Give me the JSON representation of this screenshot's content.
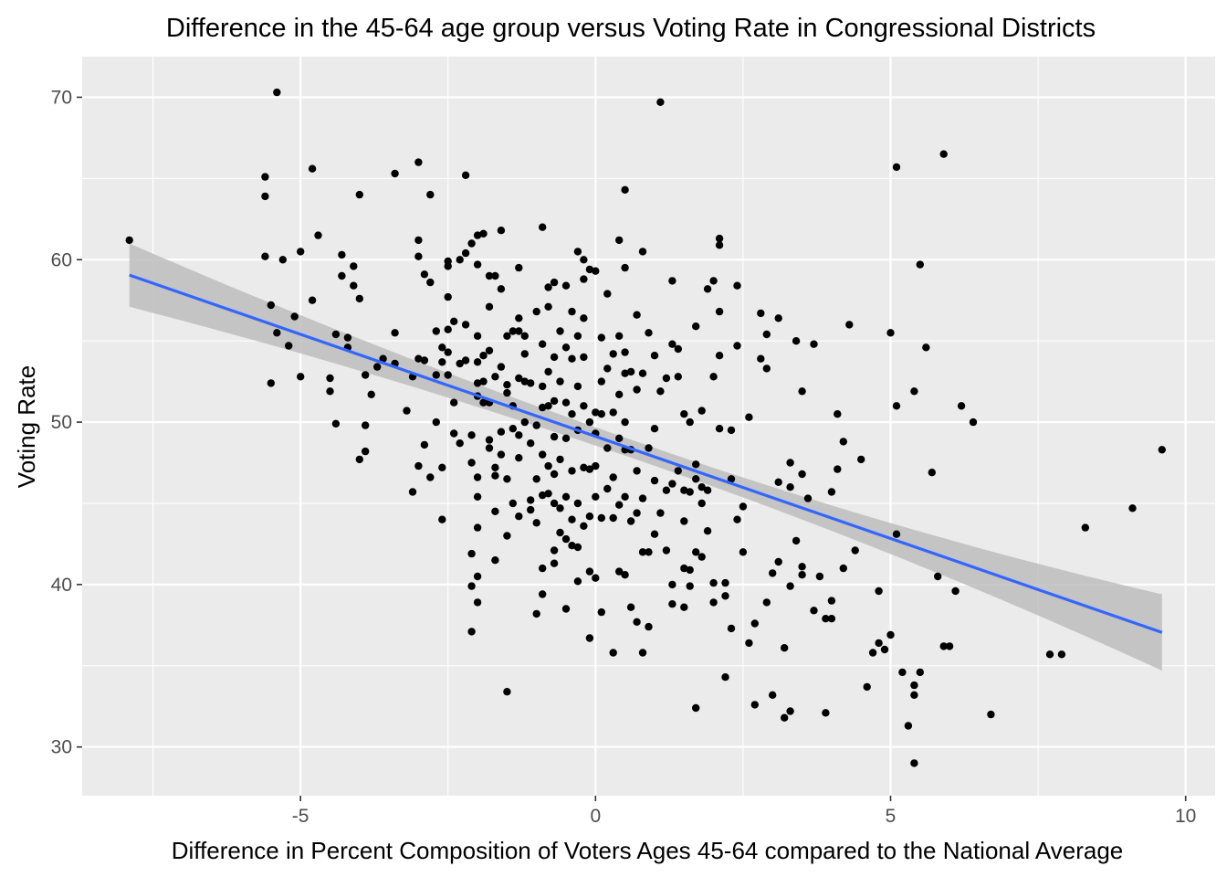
{
  "chart_data": {
    "type": "scatter",
    "title": "Difference in the 45-64 age group versus Voting Rate in Congressional Districts",
    "xlabel": "Difference in Percent Composition of Voters Ages 45-64 compared to the National Average",
    "ylabel": "Voting Rate",
    "xlim": [
      -8.7,
      10.5
    ],
    "ylim": [
      27,
      72.5
    ],
    "x_ticks": [
      -5,
      0,
      5,
      10
    ],
    "x_tick_labels": [
      "-5",
      "0",
      "5",
      "10"
    ],
    "y_ticks": [
      30,
      40,
      50,
      60,
      70
    ],
    "y_tick_labels": [
      "30",
      "40",
      "50",
      "60",
      "70"
    ],
    "grid": true,
    "legend": "none",
    "colors": {
      "panel_background": "#ebebeb",
      "grid_line": "#ffffff",
      "point": "#000000",
      "trend_line": "#3366ff",
      "confidence_band": "#bdbdbd"
    },
    "trend": {
      "method": "linear",
      "x": [
        -7.9,
        9.6
      ],
      "y": [
        59.05,
        37.05
      ],
      "band_upper": [
        61.0,
        39.4
      ],
      "band_lower": [
        57.1,
        34.7
      ]
    },
    "points": [
      [
        -7.9,
        61.2
      ],
      [
        -5.4,
        70.3
      ],
      [
        -5.6,
        65.1
      ],
      [
        -5.6,
        63.9
      ],
      [
        -5.6,
        60.2
      ],
      [
        -5.3,
        60.0
      ],
      [
        -5.5,
        57.2
      ],
      [
        -5.4,
        55.5
      ],
      [
        -5.5,
        52.4
      ],
      [
        -5.2,
        54.7
      ],
      [
        -5.1,
        56.5
      ],
      [
        -5.0,
        60.5
      ],
      [
        -5.0,
        52.8
      ],
      [
        -4.8,
        65.6
      ],
      [
        -4.8,
        57.5
      ],
      [
        -4.7,
        61.5
      ],
      [
        -4.5,
        52.7
      ],
      [
        -4.5,
        51.9
      ],
      [
        -4.4,
        55.4
      ],
      [
        -4.4,
        49.9
      ],
      [
        -4.3,
        60.3
      ],
      [
        -4.3,
        59.0
      ],
      [
        -4.2,
        55.2
      ],
      [
        -4.2,
        54.6
      ],
      [
        -4.1,
        59.6
      ],
      [
        -4.1,
        58.4
      ],
      [
        -4.0,
        64.0
      ],
      [
        -4.0,
        57.6
      ],
      [
        -3.9,
        52.9
      ],
      [
        -3.9,
        49.8
      ],
      [
        -3.9,
        48.2
      ],
      [
        -4.0,
        47.7
      ],
      [
        -3.8,
        51.7
      ],
      [
        -3.7,
        53.4
      ],
      [
        -3.6,
        53.9
      ],
      [
        -3.4,
        65.3
      ],
      [
        -3.4,
        55.5
      ],
      [
        -3.4,
        53.6
      ],
      [
        -3.2,
        50.7
      ],
      [
        -3.1,
        52.8
      ],
      [
        -3.0,
        66.0
      ],
      [
        -3.0,
        61.2
      ],
      [
        -3.0,
        60.2
      ],
      [
        -3.0,
        53.9
      ],
      [
        -2.9,
        59.1
      ],
      [
        -2.9,
        53.8
      ],
      [
        -2.9,
        48.6
      ],
      [
        -3.0,
        47.3
      ],
      [
        -3.1,
        45.7
      ],
      [
        -2.8,
        64.0
      ],
      [
        -2.8,
        58.6
      ],
      [
        -2.7,
        55.6
      ],
      [
        -2.7,
        52.9
      ],
      [
        -2.7,
        50.0
      ],
      [
        -2.8,
        46.6
      ],
      [
        -2.6,
        54.6
      ],
      [
        -2.6,
        53.7
      ],
      [
        -2.6,
        47.2
      ],
      [
        -2.6,
        44.0
      ],
      [
        -2.5,
        59.6
      ],
      [
        -2.5,
        59.9
      ],
      [
        -2.5,
        57.7
      ],
      [
        -2.5,
        55.7
      ],
      [
        -2.5,
        54.3
      ],
      [
        -2.5,
        52.9
      ],
      [
        -2.4,
        56.2
      ],
      [
        -2.4,
        51.2
      ],
      [
        -2.4,
        49.3
      ],
      [
        -2.3,
        60.0
      ],
      [
        -2.3,
        53.6
      ],
      [
        -2.3,
        48.7
      ],
      [
        -2.2,
        65.2
      ],
      [
        -2.2,
        60.4
      ],
      [
        -2.2,
        56.0
      ],
      [
        -2.2,
        53.8
      ],
      [
        -2.1,
        61.0
      ],
      [
        -2.1,
        49.2
      ],
      [
        -2.1,
        47.5
      ],
      [
        -2.0,
        61.5
      ],
      [
        -2.0,
        59.7
      ],
      [
        -2.0,
        55.3
      ],
      [
        -2.0,
        53.7
      ],
      [
        -2.0,
        52.4
      ],
      [
        -2.0,
        51.6
      ],
      [
        -2.0,
        46.6
      ],
      [
        -2.0,
        45.4
      ],
      [
        -2.0,
        43.5
      ],
      [
        -2.1,
        41.9
      ],
      [
        -2.1,
        39.9
      ],
      [
        -2.0,
        38.9
      ],
      [
        -2.0,
        40.5
      ],
      [
        -2.1,
        37.1
      ],
      [
        -1.9,
        61.6
      ],
      [
        -1.9,
        54.1
      ],
      [
        -1.9,
        52.5
      ],
      [
        -1.9,
        51.2
      ],
      [
        -1.8,
        59.0
      ],
      [
        -1.8,
        57.1
      ],
      [
        -1.8,
        54.4
      ],
      [
        -1.8,
        51.2
      ],
      [
        -1.8,
        48.9
      ],
      [
        -1.8,
        48.4
      ],
      [
        -1.7,
        59.0
      ],
      [
        -1.7,
        52.8
      ],
      [
        -1.7,
        47.2
      ],
      [
        -1.7,
        46.7
      ],
      [
        -1.7,
        44.5
      ],
      [
        -1.7,
        41.5
      ],
      [
        -1.6,
        61.8
      ],
      [
        -1.6,
        58.2
      ],
      [
        -1.6,
        53.4
      ],
      [
        -1.6,
        49.4
      ],
      [
        -1.6,
        48.0
      ],
      [
        -1.5,
        55.3
      ],
      [
        -1.5,
        52.3
      ],
      [
        -1.5,
        51.8
      ],
      [
        -1.5,
        46.5
      ],
      [
        -1.5,
        43.0
      ],
      [
        -1.5,
        33.4
      ],
      [
        -1.4,
        55.6
      ],
      [
        -1.4,
        51.0
      ],
      [
        -1.4,
        49.6
      ],
      [
        -1.4,
        45.0
      ],
      [
        -1.3,
        59.5
      ],
      [
        -1.3,
        56.4
      ],
      [
        -1.3,
        55.6
      ],
      [
        -1.3,
        52.7
      ],
      [
        -1.3,
        49.2
      ],
      [
        -1.3,
        47.8
      ],
      [
        -1.3,
        44.2
      ],
      [
        -1.2,
        55.3
      ],
      [
        -1.2,
        54.2
      ],
      [
        -1.2,
        52.5
      ],
      [
        -1.2,
        50.0
      ],
      [
        -1.1,
        52.4
      ],
      [
        -1.1,
        48.7
      ],
      [
        -1.1,
        45.2
      ],
      [
        -1.1,
        44.6
      ],
      [
        -1.0,
        56.8
      ],
      [
        -1.0,
        49.8
      ],
      [
        -1.0,
        46.5
      ],
      [
        -1.0,
        43.8
      ],
      [
        -1.0,
        38.2
      ],
      [
        -0.9,
        62.0
      ],
      [
        -0.9,
        54.8
      ],
      [
        -0.9,
        52.2
      ],
      [
        -0.9,
        50.9
      ],
      [
        -0.9,
        48.0
      ],
      [
        -0.9,
        45.5
      ],
      [
        -0.9,
        41.0
      ],
      [
        -0.9,
        39.4
      ],
      [
        -0.8,
        58.3
      ],
      [
        -0.8,
        57.1
      ],
      [
        -0.8,
        53.1
      ],
      [
        -0.8,
        51.0
      ],
      [
        -0.8,
        47.3
      ],
      [
        -0.8,
        45.6
      ],
      [
        -0.7,
        58.6
      ],
      [
        -0.7,
        54.0
      ],
      [
        -0.7,
        51.3
      ],
      [
        -0.7,
        49.1
      ],
      [
        -0.7,
        46.8
      ],
      [
        -0.7,
        45.0
      ],
      [
        -0.7,
        42.1
      ],
      [
        -0.7,
        41.3
      ],
      [
        -0.6,
        55.6
      ],
      [
        -0.6,
        52.5
      ],
      [
        -0.6,
        47.7
      ],
      [
        -0.6,
        44.7
      ],
      [
        -0.6,
        43.2
      ],
      [
        -0.5,
        58.4
      ],
      [
        -0.5,
        54.6
      ],
      [
        -0.5,
        51.2
      ],
      [
        -0.5,
        49.0
      ],
      [
        -0.5,
        45.4
      ],
      [
        -0.5,
        42.8
      ],
      [
        -0.5,
        38.5
      ],
      [
        -0.4,
        56.8
      ],
      [
        -0.4,
        53.9
      ],
      [
        -0.4,
        50.5
      ],
      [
        -0.4,
        47.0
      ],
      [
        -0.4,
        44.0
      ],
      [
        -0.4,
        42.4
      ],
      [
        -0.3,
        60.5
      ],
      [
        -0.3,
        55.3
      ],
      [
        -0.3,
        52.2
      ],
      [
        -0.3,
        49.5
      ],
      [
        -0.3,
        45.0
      ],
      [
        -0.3,
        42.3
      ],
      [
        -0.3,
        40.2
      ],
      [
        -0.2,
        60.0
      ],
      [
        -0.2,
        58.8
      ],
      [
        -0.2,
        56.4
      ],
      [
        -0.2,
        54.0
      ],
      [
        -0.2,
        51.0
      ],
      [
        -0.2,
        47.2
      ],
      [
        -0.2,
        43.6
      ],
      [
        -0.1,
        59.4
      ],
      [
        -0.1,
        50.0
      ],
      [
        -0.1,
        47.1
      ],
      [
        -0.1,
        44.2
      ],
      [
        -0.1,
        40.8
      ],
      [
        -0.1,
        36.7
      ],
      [
        0.0,
        59.3
      ],
      [
        0.0,
        50.6
      ],
      [
        0.0,
        49.3
      ],
      [
        0.0,
        47.3
      ],
      [
        0.0,
        45.4
      ],
      [
        0.0,
        40.4
      ],
      [
        0.1,
        55.2
      ],
      [
        0.1,
        52.5
      ],
      [
        0.1,
        50.5
      ],
      [
        0.1,
        44.1
      ],
      [
        0.1,
        38.3
      ],
      [
        0.2,
        57.9
      ],
      [
        0.2,
        53.3
      ],
      [
        0.2,
        48.4
      ],
      [
        0.2,
        45.9
      ],
      [
        0.3,
        54.2
      ],
      [
        0.3,
        50.6
      ],
      [
        0.3,
        46.6
      ],
      [
        0.3,
        44.1
      ],
      [
        0.3,
        35.8
      ],
      [
        0.4,
        61.2
      ],
      [
        0.4,
        55.3
      ],
      [
        0.4,
        51.7
      ],
      [
        0.4,
        49.0
      ],
      [
        0.4,
        44.9
      ],
      [
        0.4,
        40.8
      ],
      [
        0.5,
        64.3
      ],
      [
        0.5,
        59.5
      ],
      [
        0.5,
        54.3
      ],
      [
        0.5,
        53.0
      ],
      [
        0.5,
        50.0
      ],
      [
        0.5,
        48.3
      ],
      [
        0.5,
        45.4
      ],
      [
        0.5,
        40.6
      ],
      [
        0.6,
        53.1
      ],
      [
        0.6,
        48.3
      ],
      [
        0.6,
        43.9
      ],
      [
        0.6,
        38.6
      ],
      [
        0.7,
        56.6
      ],
      [
        0.7,
        52.0
      ],
      [
        0.7,
        47.0
      ],
      [
        0.7,
        44.4
      ],
      [
        0.7,
        37.7
      ],
      [
        0.8,
        60.5
      ],
      [
        0.8,
        53.0
      ],
      [
        0.8,
        45.3
      ],
      [
        0.8,
        42.0
      ],
      [
        0.8,
        35.8
      ],
      [
        0.9,
        55.5
      ],
      [
        0.9,
        48.4
      ],
      [
        0.9,
        42.0
      ],
      [
        0.9,
        37.4
      ],
      [
        1.0,
        54.1
      ],
      [
        1.0,
        49.6
      ],
      [
        1.0,
        46.4
      ],
      [
        1.0,
        43.1
      ],
      [
        1.1,
        69.7
      ],
      [
        1.1,
        51.9
      ],
      [
        1.1,
        44.4
      ],
      [
        1.2,
        52.7
      ],
      [
        1.2,
        45.8
      ],
      [
        1.2,
        42.1
      ],
      [
        1.3,
        58.7
      ],
      [
        1.3,
        54.8
      ],
      [
        1.3,
        46.2
      ],
      [
        1.3,
        40.0
      ],
      [
        1.3,
        38.8
      ],
      [
        1.4,
        54.5
      ],
      [
        1.4,
        52.8
      ],
      [
        1.4,
        47.0
      ],
      [
        1.5,
        50.5
      ],
      [
        1.5,
        45.8
      ],
      [
        1.5,
        43.9
      ],
      [
        1.5,
        41.0
      ],
      [
        1.5,
        38.6
      ],
      [
        1.6,
        50.0
      ],
      [
        1.6,
        45.7
      ],
      [
        1.6,
        40.9
      ],
      [
        1.6,
        39.9
      ],
      [
        1.7,
        55.9
      ],
      [
        1.7,
        47.4
      ],
      [
        1.7,
        46.5
      ],
      [
        1.7,
        42.0
      ],
      [
        1.7,
        32.4
      ],
      [
        1.8,
        50.7
      ],
      [
        1.8,
        46.0
      ],
      [
        1.8,
        45.0
      ],
      [
        1.8,
        41.7
      ],
      [
        1.9,
        58.2
      ],
      [
        1.9,
        45.8
      ],
      [
        1.9,
        43.3
      ],
      [
        2.0,
        58.7
      ],
      [
        2.0,
        52.8
      ],
      [
        2.0,
        38.9
      ],
      [
        2.0,
        40.1
      ],
      [
        2.1,
        61.3
      ],
      [
        2.1,
        60.9
      ],
      [
        2.1,
        56.8
      ],
      [
        2.1,
        54.1
      ],
      [
        2.1,
        49.6
      ],
      [
        2.2,
        40.1
      ],
      [
        2.2,
        39.3
      ],
      [
        2.2,
        34.3
      ],
      [
        2.3,
        49.5
      ],
      [
        2.3,
        46.5
      ],
      [
        2.3,
        37.3
      ],
      [
        2.4,
        58.4
      ],
      [
        2.4,
        54.7
      ],
      [
        2.4,
        44.0
      ],
      [
        2.5,
        44.8
      ],
      [
        2.5,
        42.0
      ],
      [
        2.6,
        50.3
      ],
      [
        2.6,
        36.4
      ],
      [
        2.7,
        37.6
      ],
      [
        2.7,
        32.6
      ],
      [
        2.8,
        56.7
      ],
      [
        2.8,
        53.9
      ],
      [
        2.9,
        55.4
      ],
      [
        2.9,
        53.3
      ],
      [
        2.9,
        38.9
      ],
      [
        3.0,
        40.7
      ],
      [
        3.0,
        33.2
      ],
      [
        3.1,
        56.4
      ],
      [
        3.1,
        46.3
      ],
      [
        3.1,
        41.4
      ],
      [
        3.2,
        36.1
      ],
      [
        3.2,
        31.8
      ],
      [
        3.3,
        47.5
      ],
      [
        3.3,
        46.0
      ],
      [
        3.3,
        39.9
      ],
      [
        3.3,
        32.2
      ],
      [
        3.4,
        55.0
      ],
      [
        3.4,
        42.7
      ],
      [
        3.5,
        51.9
      ],
      [
        3.5,
        46.8
      ],
      [
        3.5,
        41.1
      ],
      [
        3.5,
        40.6
      ],
      [
        3.6,
        45.3
      ],
      [
        3.7,
        54.8
      ],
      [
        3.7,
        38.4
      ],
      [
        3.8,
        40.5
      ],
      [
        3.9,
        37.9
      ],
      [
        3.9,
        32.1
      ],
      [
        4.0,
        39.0
      ],
      [
        4.0,
        37.9
      ],
      [
        4.0,
        45.7
      ],
      [
        4.1,
        50.5
      ],
      [
        4.1,
        47.1
      ],
      [
        4.2,
        48.8
      ],
      [
        4.2,
        41.0
      ],
      [
        4.3,
        56.0
      ],
      [
        4.4,
        42.1
      ],
      [
        4.5,
        47.7
      ],
      [
        4.6,
        33.7
      ],
      [
        4.7,
        35.8
      ],
      [
        4.8,
        39.6
      ],
      [
        4.8,
        36.4
      ],
      [
        4.9,
        36.0
      ],
      [
        5.0,
        55.5
      ],
      [
        5.0,
        36.9
      ],
      [
        5.1,
        65.7
      ],
      [
        5.1,
        51.0
      ],
      [
        5.1,
        43.1
      ],
      [
        5.2,
        34.6
      ],
      [
        5.3,
        31.3
      ],
      [
        5.4,
        51.9
      ],
      [
        5.4,
        33.8
      ],
      [
        5.4,
        33.2
      ],
      [
        5.4,
        29.0
      ],
      [
        5.5,
        59.7
      ],
      [
        5.5,
        34.6
      ],
      [
        5.6,
        54.6
      ],
      [
        5.7,
        46.9
      ],
      [
        5.8,
        40.5
      ],
      [
        5.9,
        66.5
      ],
      [
        5.9,
        36.2
      ],
      [
        6.0,
        36.2
      ],
      [
        6.1,
        39.6
      ],
      [
        6.2,
        51.0
      ],
      [
        6.4,
        50.0
      ],
      [
        6.7,
        32.0
      ],
      [
        7.7,
        35.7
      ],
      [
        7.9,
        35.7
      ],
      [
        8.3,
        43.5
      ],
      [
        9.1,
        44.7
      ],
      [
        9.6,
        48.3
      ]
    ]
  }
}
